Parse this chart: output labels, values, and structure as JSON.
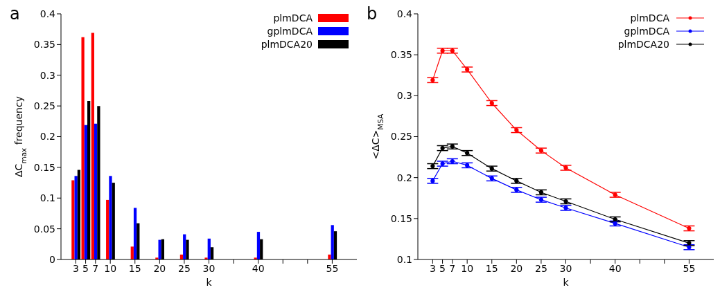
{
  "chart_data": [
    {
      "type": "bar",
      "title": "a",
      "xlabel": "k",
      "ylabel": "ΔC$_{max}$ frequency",
      "x": [
        3,
        5,
        7,
        10,
        15,
        20,
        25,
        30,
        40,
        55
      ],
      "series": [
        {
          "name": "plmDCA",
          "color": "#ff0000",
          "values": [
            0.129,
            0.362,
            0.369,
            0.097,
            0.021,
            0.003,
            0.008,
            0.003,
            0.003,
            0.008
          ]
        },
        {
          "name": "gplmDCA",
          "color": "#0000ff",
          "values": [
            0.136,
            0.219,
            0.221,
            0.136,
            0.084,
            0.032,
            0.041,
            0.034,
            0.045,
            0.056
          ]
        },
        {
          "name": "plmDCA20",
          "color": "#000000",
          "values": [
            0.146,
            0.258,
            0.25,
            0.125,
            0.059,
            0.033,
            0.032,
            0.02,
            0.033,
            0.046
          ]
        }
      ],
      "xlim": [
        0,
        60
      ],
      "xticks": [
        3,
        5,
        7,
        10,
        15,
        20,
        25,
        30,
        {
          "value": 35,
          "label": null
        },
        40,
        {
          "value": 45,
          "label": null
        },
        {
          "value": 50,
          "label": null
        },
        55
      ],
      "ylim": [
        0,
        0.4
      ],
      "yticks": [
        0,
        0.05,
        0.1,
        0.15,
        0.2,
        0.25,
        0.3,
        0.35,
        0.4
      ],
      "legend": "top right"
    },
    {
      "type": "line",
      "title": "b",
      "xlabel": "k",
      "ylabel": "<ΔC>$_{MSA}$",
      "x": [
        3,
        5,
        7,
        10,
        15,
        20,
        25,
        30,
        40,
        55
      ],
      "series": [
        {
          "name": "plmDCA",
          "color": "#ff0000",
          "values": [
            0.319,
            0.355,
            0.355,
            0.332,
            0.291,
            0.258,
            0.233,
            0.212,
            0.179,
            0.138
          ],
          "errors": [
            0.003,
            0.003,
            0.003,
            0.003,
            0.003,
            0.003,
            0.003,
            0.003,
            0.003,
            0.003
          ]
        },
        {
          "name": "gplmDCA",
          "color": "#0000ff",
          "values": [
            0.196,
            0.217,
            0.22,
            0.215,
            0.199,
            0.185,
            0.173,
            0.163,
            0.144,
            0.115
          ],
          "errors": [
            0.003,
            0.003,
            0.003,
            0.003,
            0.003,
            0.003,
            0.003,
            0.003,
            0.003,
            0.003
          ]
        },
        {
          "name": "plmDCA20",
          "color": "#000000",
          "values": [
            0.214,
            0.236,
            0.238,
            0.23,
            0.211,
            0.196,
            0.182,
            0.171,
            0.149,
            0.12
          ],
          "errors": [
            0.003,
            0.003,
            0.003,
            0.003,
            0.003,
            0.003,
            0.003,
            0.003,
            0.003,
            0.003
          ]
        }
      ],
      "xlim": [
        0,
        60
      ],
      "xticks": [
        3,
        5,
        7,
        10,
        15,
        20,
        25,
        30,
        {
          "value": 35,
          "label": null
        },
        40,
        {
          "value": 45,
          "label": null
        },
        {
          "value": 50,
          "label": null
        },
        55
      ],
      "ylim": [
        0.1,
        0.4
      ],
      "yticks": [
        0.1,
        0.15,
        0.2,
        0.25,
        0.3,
        0.35,
        0.4
      ],
      "marker": "circle",
      "legend": "top right"
    }
  ]
}
